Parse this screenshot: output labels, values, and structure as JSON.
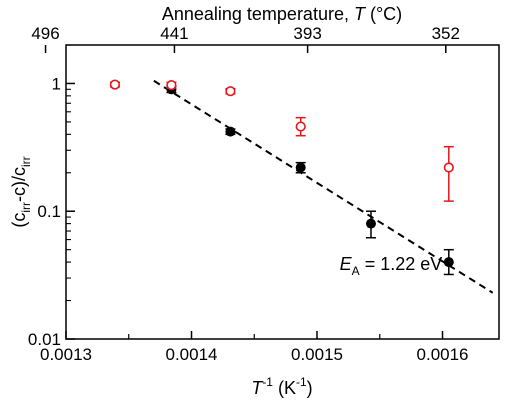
{
  "chart_data": {
    "type": "scatter",
    "title": "",
    "xlabel": {
      "main": "T",
      "sup": "-1",
      "unit_open": " (K",
      "unit_sup": "-1",
      "unit_close": ")"
    },
    "ylabel": {
      "open": "(c",
      "sub1": "irr",
      "mid": "-c)/c",
      "sub2": "irr"
    },
    "top_axis_label": {
      "text": "Annealing temperature, ",
      "symbol": "T",
      "unit": " (°C)"
    },
    "xlim": [
      0.0013,
      0.001645
    ],
    "ylim": [
      0.01,
      2
    ],
    "y_scale": "log",
    "x_ticks": [
      {
        "value": 0.0013,
        "label": "0.0013"
      },
      {
        "value": 0.0014,
        "label": "0.0014"
      },
      {
        "value": 0.0015,
        "label": "0.0015"
      },
      {
        "value": 0.0016,
        "label": "0.0016"
      }
    ],
    "x_minor_ticks": [
      0.00135,
      0.00145,
      0.00155
    ],
    "y_ticks": [
      {
        "value": 0.01,
        "label": "0.01"
      },
      {
        "value": 0.1,
        "label": "0.1"
      },
      {
        "value": 1,
        "label": "1"
      }
    ],
    "top_ticks": [
      {
        "value": 0.0012837,
        "label": "496"
      },
      {
        "value": 0.0013864,
        "label": "441"
      },
      {
        "value": 0.0014925,
        "label": "393"
      },
      {
        "value": 0.0016026,
        "label": "352"
      }
    ],
    "series": [
      {
        "marker": "filled-circle",
        "color": "#000000",
        "points": [
          {
            "x": 0.001384,
            "y": 0.9,
            "err": [
              0.85,
              0.95
            ]
          },
          {
            "x": 0.001431,
            "y": 0.42,
            "err": [
              0.4,
              0.44
            ]
          },
          {
            "x": 0.001487,
            "y": 0.22,
            "err": [
              0.2,
              0.24
            ]
          },
          {
            "x": 0.001543,
            "y": 0.08,
            "err": [
              0.062,
              0.1
            ]
          },
          {
            "x": 0.001605,
            "y": 0.04,
            "err": [
              0.032,
              0.05
            ]
          }
        ]
      },
      {
        "marker": "open-circle",
        "color": "#e8141b",
        "points": [
          {
            "x": 0.001339,
            "y": 0.98,
            "err": [
              0.94,
              1.02
            ]
          },
          {
            "x": 0.001384,
            "y": 0.97,
            "err": [
              0.92,
              1.02
            ]
          },
          {
            "x": 0.001431,
            "y": 0.87,
            "err": [
              0.83,
              0.91
            ]
          },
          {
            "x": 0.001487,
            "y": 0.46,
            "err": [
              0.39,
              0.54
            ]
          },
          {
            "x": 0.001605,
            "y": 0.22,
            "err": [
              0.12,
              0.32
            ]
          }
        ]
      }
    ],
    "fit_line": {
      "style": "dashed",
      "color": "#000000",
      "points": [
        [
          0.00137,
          1.05
        ],
        [
          0.00164,
          0.023
        ]
      ]
    },
    "annotation": {
      "symbol": "E",
      "sub": "A",
      "text": " = 1.22 eV",
      "x": 0.00153,
      "y": 0.04
    }
  }
}
